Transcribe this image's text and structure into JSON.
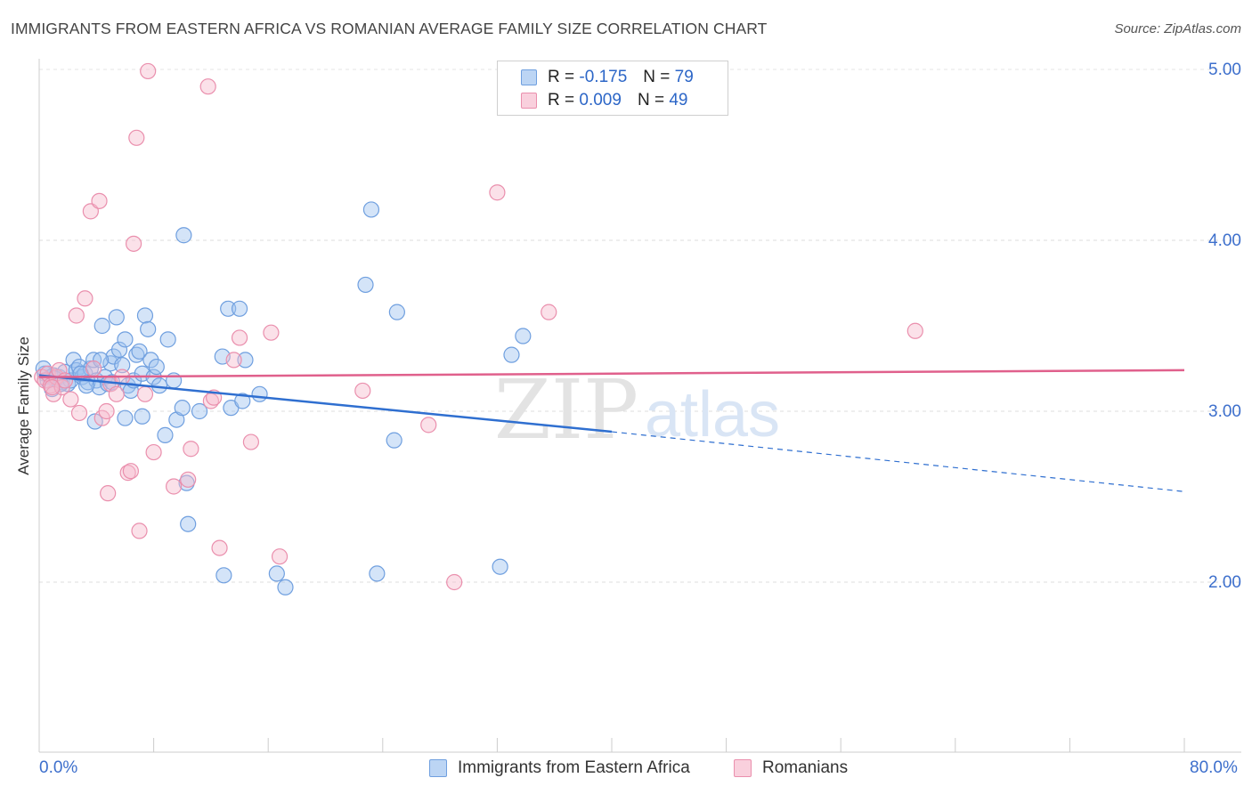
{
  "header": {
    "title": "IMMIGRANTS FROM EASTERN AFRICA VS ROMANIAN AVERAGE FAMILY SIZE CORRELATION CHART",
    "source": "Source: ZipAtlas.com"
  },
  "legend": {
    "series": [
      {
        "r_label": "R =",
        "r_value": "-0.175",
        "n_label": "N =",
        "n_value": "79",
        "color": "#9fc3ef",
        "border": "#6f9fdf"
      },
      {
        "r_label": "R =",
        "r_value": "0.009",
        "n_label": "N =",
        "n_value": "49",
        "color": "#f6bccf",
        "border": "#ea8fad"
      }
    ]
  },
  "watermark": {
    "zip": "ZIP",
    "atlas": "atlas"
  },
  "chart_data": {
    "type": "scatter",
    "title": "IMMIGRANTS FROM EASTERN AFRICA VS ROMANIAN AVERAGE FAMILY SIZE CORRELATION CHART",
    "xlabel": "",
    "ylabel": "Average Family Size",
    "xlim": [
      0,
      80
    ],
    "ylim": [
      1.0,
      5.2
    ],
    "x_tick_labels": [
      "0.0%",
      "80.0%"
    ],
    "y_ticks": [
      2.0,
      3.0,
      4.0,
      5.0
    ],
    "y_tick_labels": [
      "2.00",
      "3.00",
      "4.00",
      "5.00"
    ],
    "grid": true,
    "series": [
      {
        "name": "Immigrants from Eastern Africa",
        "color": "#6f9fdf",
        "fill": "#9fc3ef",
        "points": [
          [
            0.4,
            3.22
          ],
          [
            0.6,
            3.18
          ],
          [
            0.8,
            3.2
          ],
          [
            1.0,
            3.21
          ],
          [
            1.2,
            3.19
          ],
          [
            1.4,
            3.2
          ],
          [
            1.6,
            3.17
          ],
          [
            1.8,
            3.23
          ],
          [
            2.0,
            3.16
          ],
          [
            2.2,
            3.18
          ],
          [
            2.4,
            3.3
          ],
          [
            2.6,
            3.24
          ],
          [
            2.8,
            3.26
          ],
          [
            3.0,
            3.2
          ],
          [
            3.2,
            3.22
          ],
          [
            3.4,
            3.17
          ],
          [
            3.6,
            3.25
          ],
          [
            3.8,
            3.3
          ],
          [
            4.0,
            3.18
          ],
          [
            4.2,
            3.14
          ],
          [
            4.4,
            3.5
          ],
          [
            4.6,
            3.2
          ],
          [
            4.8,
            3.16
          ],
          [
            5.0,
            3.28
          ],
          [
            5.2,
            3.32
          ],
          [
            5.4,
            3.55
          ],
          [
            5.6,
            3.36
          ],
          [
            5.8,
            3.27
          ],
          [
            6.0,
            3.42
          ],
          [
            6.2,
            3.15
          ],
          [
            6.4,
            3.12
          ],
          [
            6.6,
            3.18
          ],
          [
            6.8,
            3.33
          ],
          [
            7.0,
            3.35
          ],
          [
            7.2,
            3.22
          ],
          [
            7.4,
            3.56
          ],
          [
            7.6,
            3.48
          ],
          [
            7.8,
            3.3
          ],
          [
            8.0,
            3.2
          ],
          [
            8.2,
            3.26
          ],
          [
            8.4,
            3.15
          ],
          [
            8.8,
            2.86
          ],
          [
            9.0,
            3.42
          ],
          [
            9.4,
            3.18
          ],
          [
            9.6,
            2.95
          ],
          [
            10.0,
            3.02
          ],
          [
            10.3,
            2.58
          ],
          [
            10.4,
            2.34
          ],
          [
            11.2,
            3.0
          ],
          [
            12.8,
            3.32
          ],
          [
            13.2,
            3.6
          ],
          [
            13.4,
            3.02
          ],
          [
            14.0,
            3.6
          ],
          [
            14.2,
            3.06
          ],
          [
            14.4,
            3.3
          ],
          [
            15.4,
            3.1
          ],
          [
            16.6,
            2.05
          ],
          [
            17.2,
            1.97
          ],
          [
            22.8,
            3.74
          ],
          [
            23.2,
            4.18
          ],
          [
            23.6,
            2.05
          ],
          [
            24.8,
            2.83
          ],
          [
            25.0,
            3.58
          ],
          [
            32.2,
            2.09
          ],
          [
            33.0,
            3.33
          ],
          [
            33.8,
            3.44
          ],
          [
            6.0,
            2.96
          ],
          [
            3.9,
            2.94
          ],
          [
            7.2,
            2.97
          ],
          [
            10.1,
            4.03
          ],
          [
            12.9,
            2.04
          ],
          [
            1.1,
            3.19
          ],
          [
            1.5,
            3.16
          ],
          [
            2.9,
            3.22
          ],
          [
            3.3,
            3.15
          ],
          [
            4.3,
            3.3
          ],
          [
            5.1,
            3.17
          ],
          [
            0.3,
            3.25
          ],
          [
            0.9,
            3.13
          ]
        ]
      },
      {
        "name": "Romanians",
        "color": "#ea8fad",
        "fill": "#f6bccf",
        "points": [
          [
            0.2,
            3.2
          ],
          [
            0.4,
            3.18
          ],
          [
            0.6,
            3.22
          ],
          [
            0.8,
            3.15
          ],
          [
            1.0,
            3.1
          ],
          [
            1.2,
            3.2
          ],
          [
            1.4,
            3.24
          ],
          [
            1.6,
            3.14
          ],
          [
            1.8,
            3.18
          ],
          [
            2.2,
            3.07
          ],
          [
            2.6,
            3.56
          ],
          [
            2.8,
            2.99
          ],
          [
            3.2,
            3.66
          ],
          [
            3.6,
            4.17
          ],
          [
            3.8,
            3.25
          ],
          [
            4.2,
            4.23
          ],
          [
            4.4,
            2.96
          ],
          [
            4.8,
            2.52
          ],
          [
            4.7,
            3.0
          ],
          [
            5.0,
            3.16
          ],
          [
            5.4,
            3.1
          ],
          [
            5.8,
            3.2
          ],
          [
            6.2,
            2.64
          ],
          [
            6.6,
            3.98
          ],
          [
            6.8,
            4.6
          ],
          [
            7.0,
            2.3
          ],
          [
            7.4,
            3.1
          ],
          [
            7.6,
            4.99
          ],
          [
            8.0,
            2.76
          ],
          [
            9.4,
            2.56
          ],
          [
            10.4,
            2.6
          ],
          [
            10.6,
            2.78
          ],
          [
            11.8,
            4.9
          ],
          [
            12.0,
            3.06
          ],
          [
            12.2,
            3.08
          ],
          [
            12.6,
            2.2
          ],
          [
            13.6,
            3.3
          ],
          [
            14.0,
            3.43
          ],
          [
            14.8,
            2.82
          ],
          [
            16.2,
            3.46
          ],
          [
            16.8,
            2.15
          ],
          [
            22.6,
            3.12
          ],
          [
            27.2,
            2.92
          ],
          [
            29.0,
            2.0
          ],
          [
            32.0,
            4.28
          ],
          [
            35.6,
            3.58
          ],
          [
            61.2,
            3.47
          ],
          [
            6.4,
            2.65
          ],
          [
            0.9,
            3.14
          ]
        ]
      }
    ],
    "trendlines": [
      {
        "series": "Immigrants from Eastern Africa",
        "x": [
          0,
          40
        ],
        "y": [
          3.21,
          2.88
        ],
        "dashed_x": [
          40,
          80
        ],
        "dashed_y": [
          2.88,
          2.53
        ]
      },
      {
        "series": "Romanians",
        "x": [
          0,
          80
        ],
        "y": [
          3.2,
          3.24
        ]
      }
    ]
  }
}
